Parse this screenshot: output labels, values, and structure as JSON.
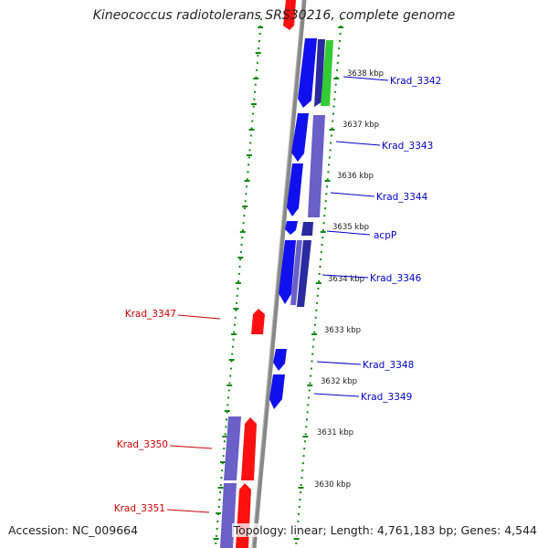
{
  "title": "Kineococcus radiotolerans SRS30216, complete genome",
  "footer": {
    "accession": "Accession: NC_009664",
    "topology": "Topology: linear; Length: 4,761,183 bp; Genes: 4,544"
  },
  "colors": {
    "forward_gene": "#1010ee",
    "forward_gene_dark": "#2a2aa0",
    "operon_purple": "#6b5fc8",
    "reverse_gene": "#ff1010",
    "rna_gene": "#33cc33",
    "backbone": "#888888",
    "dot_track": "#118811",
    "forward_label": "#0000cc",
    "reverse_label": "#cc0000"
  },
  "ruler": {
    "labels": [
      {
        "text": "3638 kbp"
      },
      {
        "text": "3637 kbp"
      },
      {
        "text": "3636 kbp"
      },
      {
        "text": "3635 kbp"
      },
      {
        "text": "3634 kbp"
      },
      {
        "text": "3633 kbp"
      },
      {
        "text": "3632 kbp"
      },
      {
        "text": "3631 kbp"
      },
      {
        "text": "3630 kbp"
      }
    ]
  },
  "genes_right": [
    {
      "name": "Krad_3342"
    },
    {
      "name": "Krad_3343"
    },
    {
      "name": "Krad_3344"
    },
    {
      "name": "acpP"
    },
    {
      "name": "Krad_3346"
    },
    {
      "name": "Krad_3348"
    },
    {
      "name": "Krad_3349"
    }
  ],
  "genes_left": [
    {
      "name": "Krad_3347"
    },
    {
      "name": "Krad_3350"
    },
    {
      "name": "Krad_3351"
    }
  ]
}
